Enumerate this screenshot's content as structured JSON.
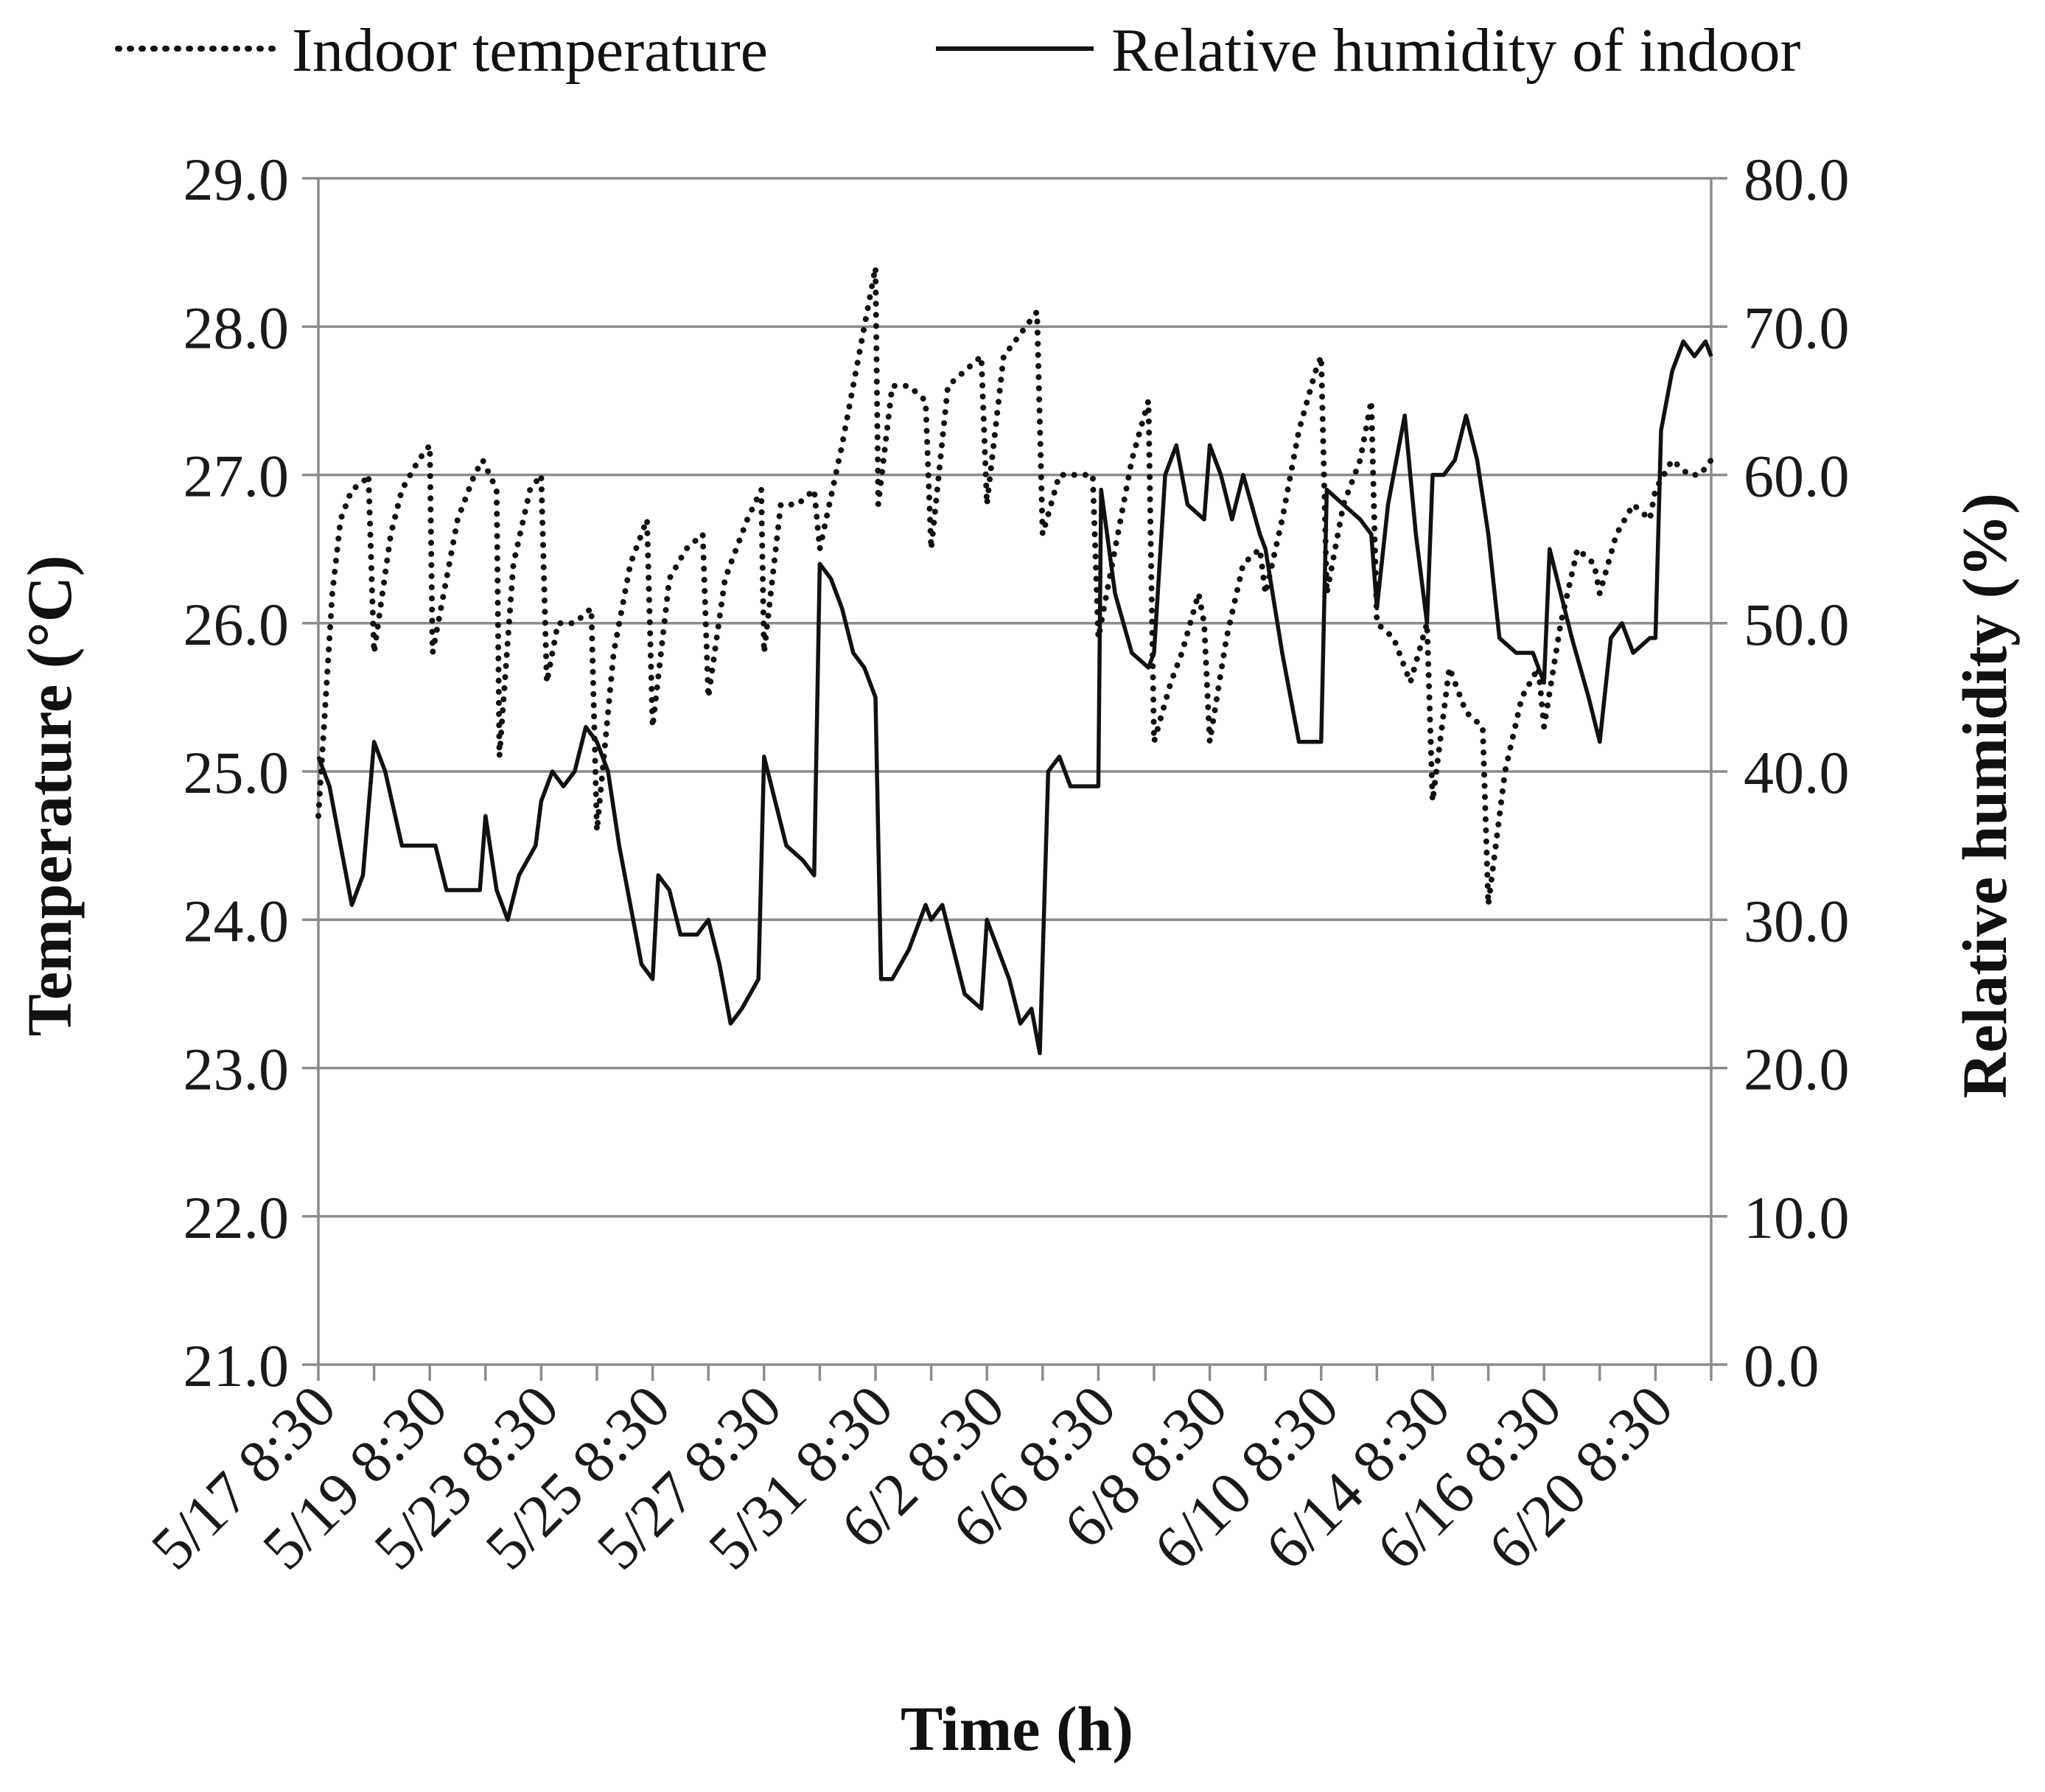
{
  "chart_data": {
    "type": "line",
    "legend": {
      "placement": "top",
      "entries": [
        {
          "name": "Indoor temperature",
          "style": "dotted"
        },
        {
          "name": "Relative humidity of indoor",
          "style": "solid"
        }
      ]
    },
    "xlabel": "Time (h)",
    "ylabel_left": "Temperature (°C)",
    "ylabel_right": "Relative humidity (%)",
    "ylim_left": [
      21,
      29
    ],
    "ylim_right": [
      0,
      80
    ],
    "yticks_left": [
      "21.0",
      "22.0",
      "23.0",
      "24.0",
      "25.0",
      "26.0",
      "27.0",
      "28.0",
      "29.0"
    ],
    "yticks_right": [
      "0.0",
      "10.0",
      "20.0",
      "30.0",
      "40.0",
      "50.0",
      "60.0",
      "70.0",
      "80.0"
    ],
    "x_tick_labels": [
      "5/17 8:30",
      "5/19 8:30",
      "5/23 8:30",
      "5/25 8:30",
      "5/27 8:30",
      "5/31 8:30",
      "6/2 8:30",
      "6/6 8:30",
      "6/8 8:30",
      "6/10 8:30",
      "6/14 8:30",
      "6/16 8:30",
      "6/20 8:30"
    ],
    "x_label_every_n_ticks": 2,
    "x_max": 25,
    "grid": true,
    "colors": {
      "lines": "#111111",
      "grid": "#8c8c8c"
    },
    "series": [
      {
        "name": "Indoor temperature",
        "axis": "left",
        "style": "dotted",
        "points": [
          [
            0,
            24.7
          ],
          [
            0.1,
            25.3
          ],
          [
            0.25,
            26.2
          ],
          [
            0.4,
            26.7
          ],
          [
            0.6,
            26.9
          ],
          [
            0.8,
            26.95
          ],
          [
            0.9,
            27.0
          ],
          [
            1.0,
            25.8
          ],
          [
            1.3,
            26.6
          ],
          [
            1.5,
            26.9
          ],
          [
            1.8,
            27.1
          ],
          [
            2.0,
            27.2
          ],
          [
            2.05,
            25.8
          ],
          [
            2.3,
            26.3
          ],
          [
            2.5,
            26.7
          ],
          [
            2.8,
            27.0
          ],
          [
            2.95,
            27.1
          ],
          [
            3.2,
            26.9
          ],
          [
            3.25,
            25.1
          ],
          [
            3.5,
            26.4
          ],
          [
            3.8,
            26.9
          ],
          [
            4.0,
            27.0
          ],
          [
            4.1,
            25.6
          ],
          [
            4.3,
            26.0
          ],
          [
            4.6,
            26.0
          ],
          [
            4.9,
            26.1
          ],
          [
            5.0,
            24.6
          ],
          [
            5.3,
            25.8
          ],
          [
            5.6,
            26.4
          ],
          [
            5.9,
            26.7
          ],
          [
            6.0,
            25.3
          ],
          [
            6.3,
            26.3
          ],
          [
            6.6,
            26.5
          ],
          [
            6.9,
            26.6
          ],
          [
            7.0,
            25.5
          ],
          [
            7.3,
            26.3
          ],
          [
            7.7,
            26.7
          ],
          [
            7.95,
            26.9
          ],
          [
            8.0,
            25.8
          ],
          [
            8.3,
            26.8
          ],
          [
            8.6,
            26.8
          ],
          [
            8.9,
            26.9
          ],
          [
            9.0,
            26.5
          ],
          [
            9.4,
            27.2
          ],
          [
            9.7,
            27.8
          ],
          [
            10.0,
            28.4
          ],
          [
            10.05,
            26.8
          ],
          [
            10.3,
            27.6
          ],
          [
            10.6,
            27.6
          ],
          [
            10.9,
            27.5
          ],
          [
            11.0,
            26.5
          ],
          [
            11.3,
            27.6
          ],
          [
            11.6,
            27.7
          ],
          [
            11.9,
            27.8
          ],
          [
            12.0,
            26.8
          ],
          [
            12.3,
            27.8
          ],
          [
            12.6,
            27.95
          ],
          [
            12.9,
            28.1
          ],
          [
            13.0,
            26.6
          ],
          [
            13.3,
            27.0
          ],
          [
            13.6,
            27.0
          ],
          [
            13.9,
            27.0
          ],
          [
            14.0,
            25.9
          ],
          [
            14.3,
            26.5
          ],
          [
            14.6,
            27.1
          ],
          [
            14.9,
            27.5
          ],
          [
            15.0,
            25.2
          ],
          [
            15.3,
            25.6
          ],
          [
            15.5,
            25.8
          ],
          [
            15.8,
            26.2
          ],
          [
            15.9,
            26.0
          ],
          [
            16.0,
            25.2
          ],
          [
            16.3,
            25.9
          ],
          [
            16.6,
            26.4
          ],
          [
            16.9,
            26.5
          ],
          [
            17.0,
            26.2
          ],
          [
            17.3,
            26.7
          ],
          [
            17.6,
            27.3
          ],
          [
            17.9,
            27.7
          ],
          [
            18.0,
            27.8
          ],
          [
            18.1,
            26.2
          ],
          [
            18.4,
            26.8
          ],
          [
            18.7,
            27.1
          ],
          [
            18.9,
            27.5
          ],
          [
            19.0,
            26.0
          ],
          [
            19.3,
            25.9
          ],
          [
            19.6,
            25.6
          ],
          [
            19.9,
            26.0
          ],
          [
            20.0,
            24.8
          ],
          [
            20.3,
            25.7
          ],
          [
            20.6,
            25.4
          ],
          [
            20.9,
            25.3
          ],
          [
            21.0,
            24.1
          ],
          [
            21.3,
            25.0
          ],
          [
            21.6,
            25.5
          ],
          [
            21.9,
            25.7
          ],
          [
            22.0,
            25.3
          ],
          [
            22.3,
            26.0
          ],
          [
            22.6,
            26.5
          ],
          [
            22.9,
            26.4
          ],
          [
            23.0,
            26.2
          ],
          [
            23.3,
            26.6
          ],
          [
            23.6,
            26.8
          ],
          [
            23.9,
            26.7
          ],
          [
            24.0,
            26.9
          ],
          [
            24.3,
            27.1
          ],
          [
            24.6,
            27.0
          ],
          [
            24.8,
            27.0
          ],
          [
            25.0,
            27.1
          ]
        ]
      },
      {
        "name": "Relative humidity of indoor",
        "axis": "right",
        "style": "solid",
        "points": [
          [
            0,
            41
          ],
          [
            0.2,
            39
          ],
          [
            0.4,
            35
          ],
          [
            0.6,
            31
          ],
          [
            0.8,
            33
          ],
          [
            1.0,
            42
          ],
          [
            1.2,
            40
          ],
          [
            1.5,
            35
          ],
          [
            1.8,
            35
          ],
          [
            2.1,
            35
          ],
          [
            2.3,
            32
          ],
          [
            2.6,
            32
          ],
          [
            2.9,
            32
          ],
          [
            3.0,
            37
          ],
          [
            3.2,
            32
          ],
          [
            3.4,
            30
          ],
          [
            3.6,
            33
          ],
          [
            3.9,
            35
          ],
          [
            4.0,
            38
          ],
          [
            4.2,
            40
          ],
          [
            4.4,
            39
          ],
          [
            4.6,
            40
          ],
          [
            4.8,
            43
          ],
          [
            5.0,
            42
          ],
          [
            5.2,
            40
          ],
          [
            5.4,
            35
          ],
          [
            5.6,
            31
          ],
          [
            5.8,
            27
          ],
          [
            6.0,
            26
          ],
          [
            6.1,
            33
          ],
          [
            6.3,
            32
          ],
          [
            6.5,
            29
          ],
          [
            6.8,
            29
          ],
          [
            7.0,
            30
          ],
          [
            7.2,
            27
          ],
          [
            7.4,
            23
          ],
          [
            7.6,
            24
          ],
          [
            7.9,
            26
          ],
          [
            8.0,
            41
          ],
          [
            8.2,
            38
          ],
          [
            8.4,
            35
          ],
          [
            8.7,
            34
          ],
          [
            8.9,
            33
          ],
          [
            9.0,
            54
          ],
          [
            9.2,
            53
          ],
          [
            9.4,
            51
          ],
          [
            9.6,
            48
          ],
          [
            9.8,
            47
          ],
          [
            10.0,
            45
          ],
          [
            10.1,
            26
          ],
          [
            10.3,
            26
          ],
          [
            10.6,
            28
          ],
          [
            10.9,
            31
          ],
          [
            11.0,
            30
          ],
          [
            11.2,
            31
          ],
          [
            11.4,
            28
          ],
          [
            11.6,
            25
          ],
          [
            11.9,
            24
          ],
          [
            12.0,
            30
          ],
          [
            12.2,
            28
          ],
          [
            12.4,
            26
          ],
          [
            12.6,
            23
          ],
          [
            12.8,
            24
          ],
          [
            12.95,
            21
          ],
          [
            13.1,
            40
          ],
          [
            13.3,
            41
          ],
          [
            13.5,
            39
          ],
          [
            13.8,
            39
          ],
          [
            14.0,
            39
          ],
          [
            14.05,
            59
          ],
          [
            14.3,
            52
          ],
          [
            14.6,
            48
          ],
          [
            14.9,
            47
          ],
          [
            15.0,
            48
          ],
          [
            15.2,
            60
          ],
          [
            15.4,
            62
          ],
          [
            15.6,
            58
          ],
          [
            15.9,
            57
          ],
          [
            16.0,
            62
          ],
          [
            16.2,
            60
          ],
          [
            16.4,
            57
          ],
          [
            16.6,
            60
          ],
          [
            16.9,
            56
          ],
          [
            17.0,
            55
          ],
          [
            17.3,
            48
          ],
          [
            17.6,
            42
          ],
          [
            17.8,
            42
          ],
          [
            18.0,
            42
          ],
          [
            18.1,
            59
          ],
          [
            18.4,
            58
          ],
          [
            18.7,
            57
          ],
          [
            18.9,
            56
          ],
          [
            19.0,
            51
          ],
          [
            19.2,
            58
          ],
          [
            19.4,
            62
          ],
          [
            19.5,
            64
          ],
          [
            19.7,
            56
          ],
          [
            19.9,
            50
          ],
          [
            20.0,
            60
          ],
          [
            20.2,
            60
          ],
          [
            20.4,
            61
          ],
          [
            20.6,
            64
          ],
          [
            20.8,
            61
          ],
          [
            21.0,
            56
          ],
          [
            21.2,
            49
          ],
          [
            21.5,
            48
          ],
          [
            21.8,
            48
          ],
          [
            22.0,
            46
          ],
          [
            22.1,
            55
          ],
          [
            22.3,
            52
          ],
          [
            22.5,
            49
          ],
          [
            22.8,
            45
          ],
          [
            23.0,
            42
          ],
          [
            23.2,
            49
          ],
          [
            23.4,
            50
          ],
          [
            23.6,
            48
          ],
          [
            23.9,
            49
          ],
          [
            24.0,
            49
          ],
          [
            24.1,
            63
          ],
          [
            24.3,
            67
          ],
          [
            24.5,
            69
          ],
          [
            24.7,
            68
          ],
          [
            24.9,
            69
          ],
          [
            25.0,
            68
          ]
        ]
      }
    ]
  }
}
